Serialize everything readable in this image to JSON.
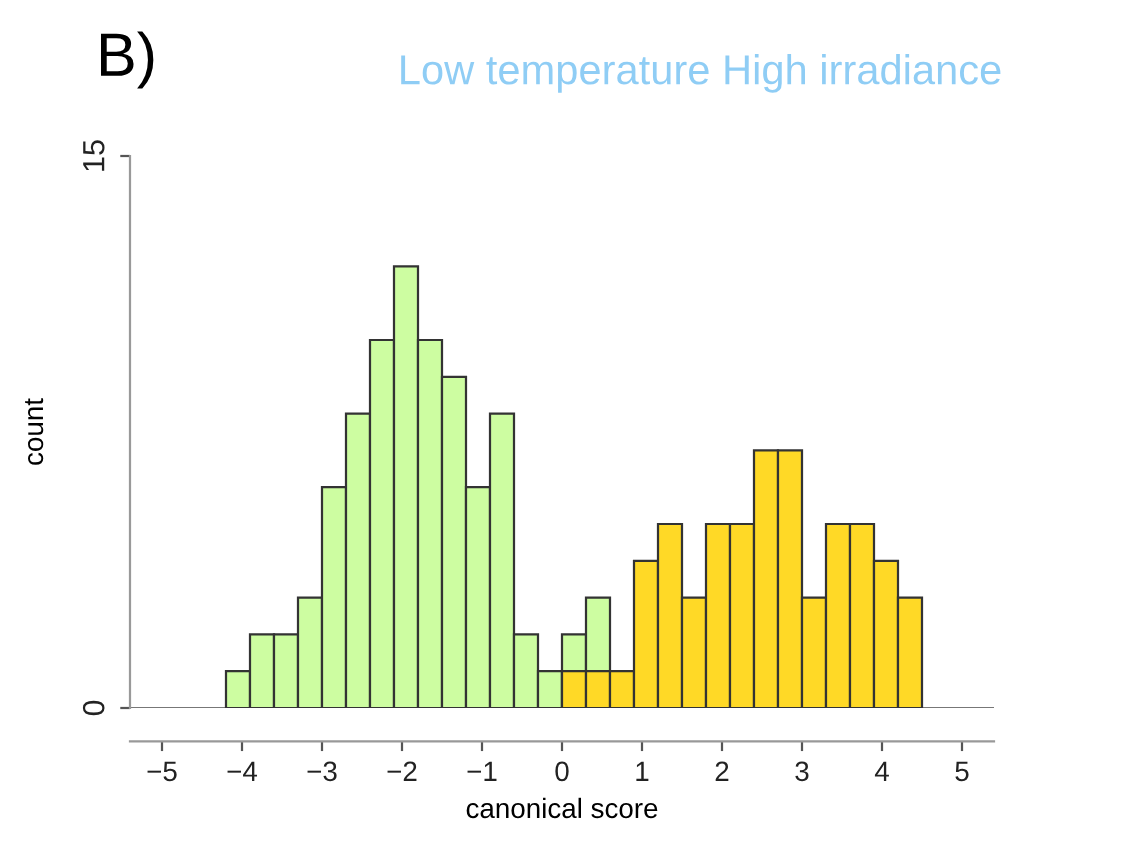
{
  "chart_data": {
    "type": "histogram",
    "title": "Low temperature High irradiance",
    "xlabel": "canonical score",
    "ylabel": "count",
    "annotations": [
      "B)"
    ],
    "bins": [
      -5.4,
      -5.1,
      -4.8,
      -4.5,
      -4.2,
      -3.9,
      -3.6,
      -3.3,
      -3.0,
      -2.7,
      -2.4,
      -2.1,
      -1.8,
      -1.5,
      -1.2,
      -0.9,
      -0.6,
      -0.3,
      0.0,
      0.3,
      0.6,
      0.9,
      1.2,
      1.5,
      1.8,
      2.1,
      2.4,
      2.7,
      3.0,
      3.3,
      3.6,
      3.9,
      4.2,
      4.5,
      4.8,
      5.1,
      5.4
    ],
    "series": [
      {
        "color": "#cdfda1",
        "values": [
          null,
          null,
          null,
          null,
          1,
          2,
          2,
          3,
          6,
          8,
          10,
          12,
          10,
          9,
          6,
          8,
          2,
          1,
          2,
          3,
          null,
          null,
          null,
          null,
          null,
          null,
          null,
          null,
          null,
          null,
          null,
          null,
          null,
          null,
          null,
          null
        ]
      },
      {
        "color": "#ffd926",
        "values": [
          null,
          null,
          null,
          null,
          null,
          null,
          null,
          null,
          null,
          null,
          null,
          null,
          null,
          null,
          null,
          null,
          null,
          null,
          1,
          1,
          1,
          4,
          5,
          3,
          5,
          5,
          7,
          7,
          3,
          5,
          5,
          4,
          3,
          null,
          null,
          null
        ]
      }
    ],
    "xlim": [
      -5.4,
      5.4
    ],
    "xticks": [
      -5,
      -4,
      -3,
      -2,
      -1,
      0,
      1,
      2,
      3,
      4,
      5
    ],
    "ylim": [
      0,
      15
    ],
    "yticks": [
      0,
      15
    ],
    "grid": false,
    "legend": false
  }
}
